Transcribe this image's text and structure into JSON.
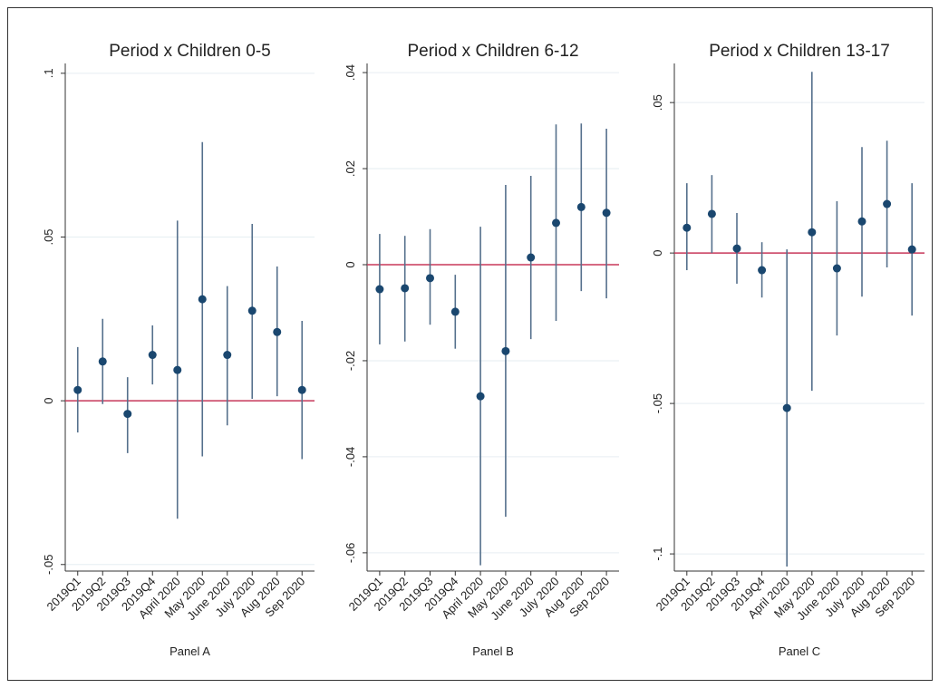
{
  "chart_data": [
    {
      "type": "errorbar",
      "title": "Period x Children 0-5",
      "xlabel": "Panel A",
      "categories": [
        "2019Q1",
        "2019Q2",
        "2019Q3",
        "2019Q4",
        "April 2020",
        "May 2020",
        "June 2020",
        "July 2020",
        "Aug 2020",
        "Sep 2020"
      ],
      "values": [
        0.0033,
        0.012,
        -0.004,
        0.014,
        0.0094,
        0.031,
        0.014,
        0.0275,
        0.021,
        0.0033
      ],
      "ci_low": [
        -0.0097,
        -0.001,
        -0.016,
        0.005,
        -0.036,
        -0.017,
        -0.0075,
        0.0006,
        0.0014,
        -0.0178
      ],
      "ci_high": [
        0.0164,
        0.025,
        0.0072,
        0.023,
        0.055,
        0.079,
        0.035,
        0.054,
        0.041,
        0.0244
      ],
      "ylim": [
        -0.052,
        0.103
      ],
      "yticks": [
        {
          "value": -0.05,
          "label": "-.05"
        },
        0,
        {
          "value": 0.05,
          "label": ".05"
        },
        {
          "value": 0.1,
          "label": ".1"
        }
      ],
      "hline": 0,
      "grid": true,
      "color": "#1a476f",
      "ci_color": "#55708c",
      "hline_color": "#c8385a"
    },
    {
      "type": "errorbar",
      "title": "Period x Children 6-12",
      "xlabel": "Panel B",
      "categories": [
        "2019Q1",
        "2019Q2",
        "2019Q3",
        "2019Q4",
        "April 2020",
        "May 2020",
        "June 2020",
        "July 2020",
        "Aug 2020",
        "Sep 2020"
      ],
      "values": [
        -0.0051,
        -0.0049,
        -0.0028,
        -0.0098,
        -0.0274,
        -0.018,
        0.0015,
        0.0087,
        0.012,
        0.0108
      ],
      "ci_low": [
        -0.0166,
        -0.016,
        -0.0125,
        -0.0175,
        -0.0626,
        -0.0525,
        -0.0155,
        -0.0117,
        -0.0055,
        -0.007
      ],
      "ci_high": [
        0.0064,
        0.006,
        0.0074,
        -0.0021,
        0.0079,
        0.0166,
        0.0185,
        0.0292,
        0.0294,
        0.0283
      ],
      "ylim": [
        -0.0638,
        0.0419
      ],
      "yticks": [
        {
          "value": -0.06,
          "label": "-.06"
        },
        {
          "value": -0.04,
          "label": "-.04"
        },
        {
          "value": -0.02,
          "label": "-.02"
        },
        0,
        {
          "value": 0.02,
          "label": ".02"
        },
        {
          "value": 0.04,
          "label": ".04"
        }
      ],
      "hline": 0,
      "grid": true,
      "color": "#1a476f",
      "ci_color": "#55708c",
      "hline_color": "#c8385a"
    },
    {
      "type": "errorbar",
      "title": "Period x Children 13-17",
      "xlabel": "Panel C",
      "categories": [
        "2019Q1",
        "2019Q2",
        "2019Q3",
        "2019Q4",
        "April 2020",
        "May 2020",
        "June 2020",
        "July 2020",
        "Aug 2020",
        "Sep 2020"
      ],
      "values": [
        0.0084,
        0.013,
        0.0015,
        -0.0057,
        -0.0515,
        0.0069,
        -0.0051,
        0.0105,
        0.0163,
        0.0012
      ],
      "ci_low": [
        -0.0057,
        0,
        -0.0102,
        -0.0148,
        -0.1042,
        -0.0458,
        -0.0274,
        -0.0145,
        -0.0048,
        -0.0208
      ],
      "ci_high": [
        0.0232,
        0.0259,
        0.0133,
        0.0036,
        0.0012,
        0.0602,
        0.0172,
        0.0352,
        0.0373,
        0.0232
      ],
      "ylim": [
        -0.1057,
        0.063
      ],
      "yticks": [
        {
          "value": -0.1,
          "label": "-.1"
        },
        {
          "value": -0.05,
          "label": "-.05"
        },
        0,
        {
          "value": 0.05,
          "label": ".05"
        }
      ],
      "hline": 0,
      "grid": true,
      "color": "#1a476f",
      "ci_color": "#55708c",
      "hline_color": "#c8385a"
    }
  ]
}
